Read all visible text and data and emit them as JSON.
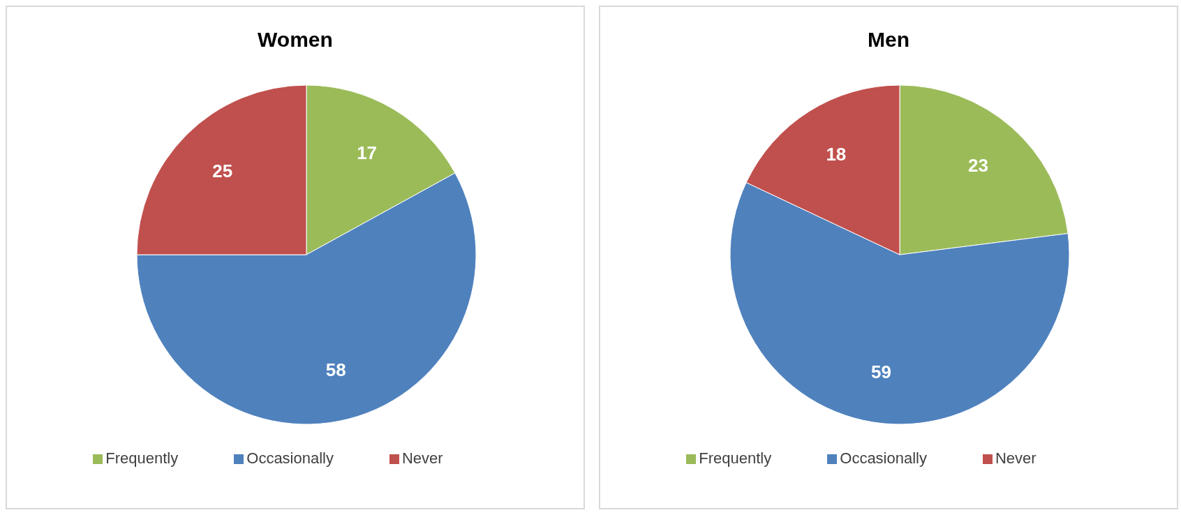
{
  "chart_data": [
    {
      "type": "pie",
      "title": "Women",
      "categories": [
        "Frequently",
        "Occasionally",
        "Never"
      ],
      "values": [
        17,
        58,
        25
      ],
      "colors": [
        "#9bbb59",
        "#4f81bd",
        "#c0504d"
      ],
      "data_labels": true,
      "legend": "bottom"
    },
    {
      "type": "pie",
      "title": "Men",
      "categories": [
        "Frequently",
        "Occasionally",
        "Never"
      ],
      "values": [
        23,
        59,
        18
      ],
      "colors": [
        "#9bbb59",
        "#4f81bd",
        "#c0504d"
      ],
      "data_labels": true,
      "legend": "bottom"
    }
  ]
}
